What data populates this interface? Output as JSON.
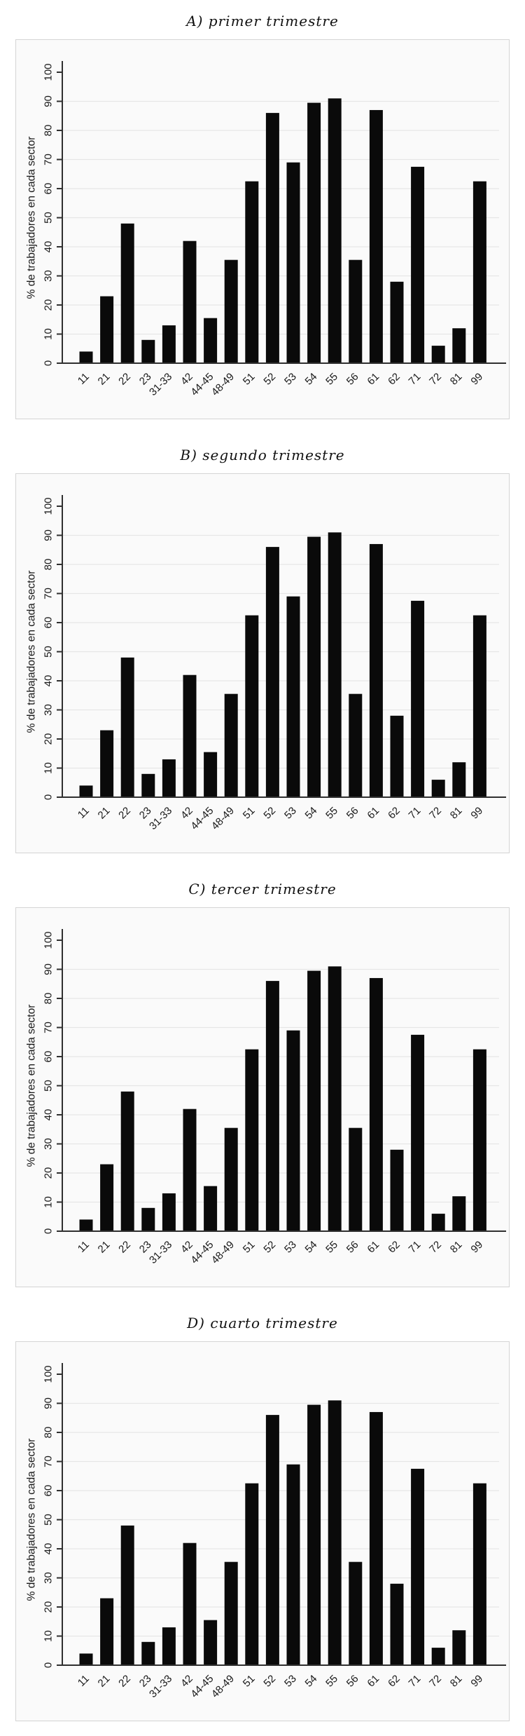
{
  "page": {
    "background": "#ffffff",
    "figure_count": 4
  },
  "style": {
    "bar_color": "#0a0a0a",
    "axis_color": "#303030",
    "grid_color": "#e6e6e6",
    "text_color": "#1a1a1a",
    "panel_border": "#d4d4d4",
    "panel_bg": "#fafafa"
  },
  "chart_data": [
    {
      "type": "bar",
      "title": "A) primer trimestre",
      "categories": [
        "11",
        "21",
        "22",
        "23",
        "31-33",
        "42",
        "44-45",
        "48-49",
        "51",
        "52",
        "53",
        "54",
        "55",
        "56",
        "61",
        "62",
        "71",
        "72",
        "81",
        "99"
      ],
      "values": [
        4,
        23,
        48,
        8,
        13,
        42,
        15.5,
        35.5,
        62.5,
        86,
        69,
        89.5,
        91,
        35.5,
        87,
        28,
        67.5,
        6,
        12,
        62.5
      ],
      "xlabel": "",
      "ylabel": "% de trabajadores en cada sector",
      "ylim": [
        0,
        100
      ],
      "yticks": [
        0,
        10,
        20,
        30,
        40,
        50,
        60,
        70,
        80,
        90,
        100
      ],
      "grid_ticks": [
        10,
        20,
        30,
        40,
        50,
        60,
        70,
        80,
        90
      ],
      "grid": "horizontal",
      "legend": "none",
      "x_label_angle": 45,
      "y_label_angle": 90
    },
    {
      "type": "bar",
      "title": "B) segundo trimestre",
      "categories": [
        "11",
        "21",
        "22",
        "23",
        "31-33",
        "42",
        "44-45",
        "48-49",
        "51",
        "52",
        "53",
        "54",
        "55",
        "56",
        "61",
        "62",
        "71",
        "72",
        "81",
        "99"
      ],
      "values": [
        4,
        23,
        48,
        8,
        13,
        42,
        15.5,
        35.5,
        62.5,
        86,
        69,
        89.5,
        91,
        35.5,
        87,
        28,
        67.5,
        6,
        12,
        62.5
      ],
      "xlabel": "",
      "ylabel": "% de trabajadores en cada sector",
      "ylim": [
        0,
        100
      ],
      "yticks": [
        0,
        10,
        20,
        30,
        40,
        50,
        60,
        70,
        80,
        90,
        100
      ],
      "grid_ticks": [
        10,
        20,
        30,
        40,
        50,
        60,
        70,
        80,
        90
      ],
      "grid": "horizontal",
      "legend": "none",
      "x_label_angle": 45,
      "y_label_angle": 90
    },
    {
      "type": "bar",
      "title": "C) tercer trimestre",
      "categories": [
        "11",
        "21",
        "22",
        "23",
        "31-33",
        "42",
        "44-45",
        "48-49",
        "51",
        "52",
        "53",
        "54",
        "55",
        "56",
        "61",
        "62",
        "71",
        "72",
        "81",
        "99"
      ],
      "values": [
        4,
        23,
        48,
        8,
        13,
        42,
        15.5,
        35.5,
        62.5,
        86,
        69,
        89.5,
        91,
        35.5,
        87,
        28,
        67.5,
        6,
        12,
        62.5
      ],
      "xlabel": "",
      "ylabel": "% de trabajadores en cada sector",
      "ylim": [
        0,
        100
      ],
      "yticks": [
        0,
        10,
        20,
        30,
        40,
        50,
        60,
        70,
        80,
        90,
        100
      ],
      "grid_ticks": [
        10,
        20,
        30,
        40,
        50,
        60,
        70,
        80,
        90
      ],
      "grid": "horizontal",
      "legend": "none",
      "x_label_angle": 45,
      "y_label_angle": 90
    },
    {
      "type": "bar",
      "title": "D) cuarto trimestre",
      "categories": [
        "11",
        "21",
        "22",
        "23",
        "31-33",
        "42",
        "44-45",
        "48-49",
        "51",
        "52",
        "53",
        "54",
        "55",
        "56",
        "61",
        "62",
        "71",
        "72",
        "81",
        "99"
      ],
      "values": [
        4,
        23,
        48,
        8,
        13,
        42,
        15.5,
        35.5,
        62.5,
        86,
        69,
        89.5,
        91,
        35.5,
        87,
        28,
        67.5,
        6,
        12,
        62.5
      ],
      "xlabel": "",
      "ylabel": "% de trabajadores en cada sector",
      "ylim": [
        0,
        100
      ],
      "yticks": [
        0,
        10,
        20,
        30,
        40,
        50,
        60,
        70,
        80,
        90,
        100
      ],
      "grid_ticks": [
        10,
        20,
        30,
        40,
        50,
        60,
        70,
        80,
        90
      ],
      "grid": "horizontal",
      "legend": "none",
      "x_label_angle": 45,
      "y_label_angle": 90
    }
  ]
}
